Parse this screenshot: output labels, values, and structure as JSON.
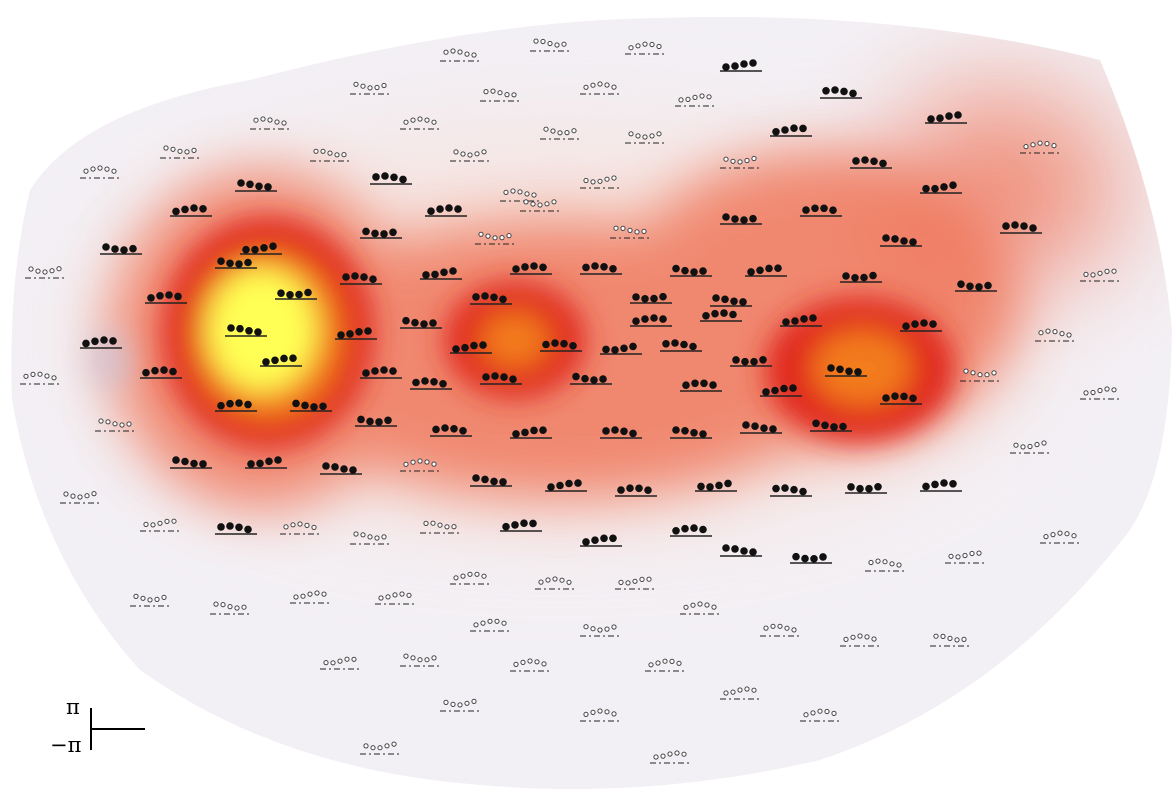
{
  "figure": {
    "palette": {
      "background": "#f3f0f5",
      "glow_low": "#f7dcd2",
      "glow_mid": "#ef6a4c",
      "glow_red": "#e0281c",
      "glow_orange": "#f37b1f",
      "glow_yellow": "#ffff55",
      "marker_filled": "#111111",
      "marker_open": "#444444",
      "baseline": "#222222"
    },
    "hotspots": [
      {
        "id": "left",
        "peak_color": "yellow"
      },
      {
        "id": "center",
        "peak_color": "orange"
      },
      {
        "id": "right",
        "peak_color": "orange"
      }
    ],
    "marker_types": [
      "filled-dots",
      "open-dots"
    ],
    "scale": {
      "top_label": "π",
      "bottom_label": "−π"
    }
  }
}
